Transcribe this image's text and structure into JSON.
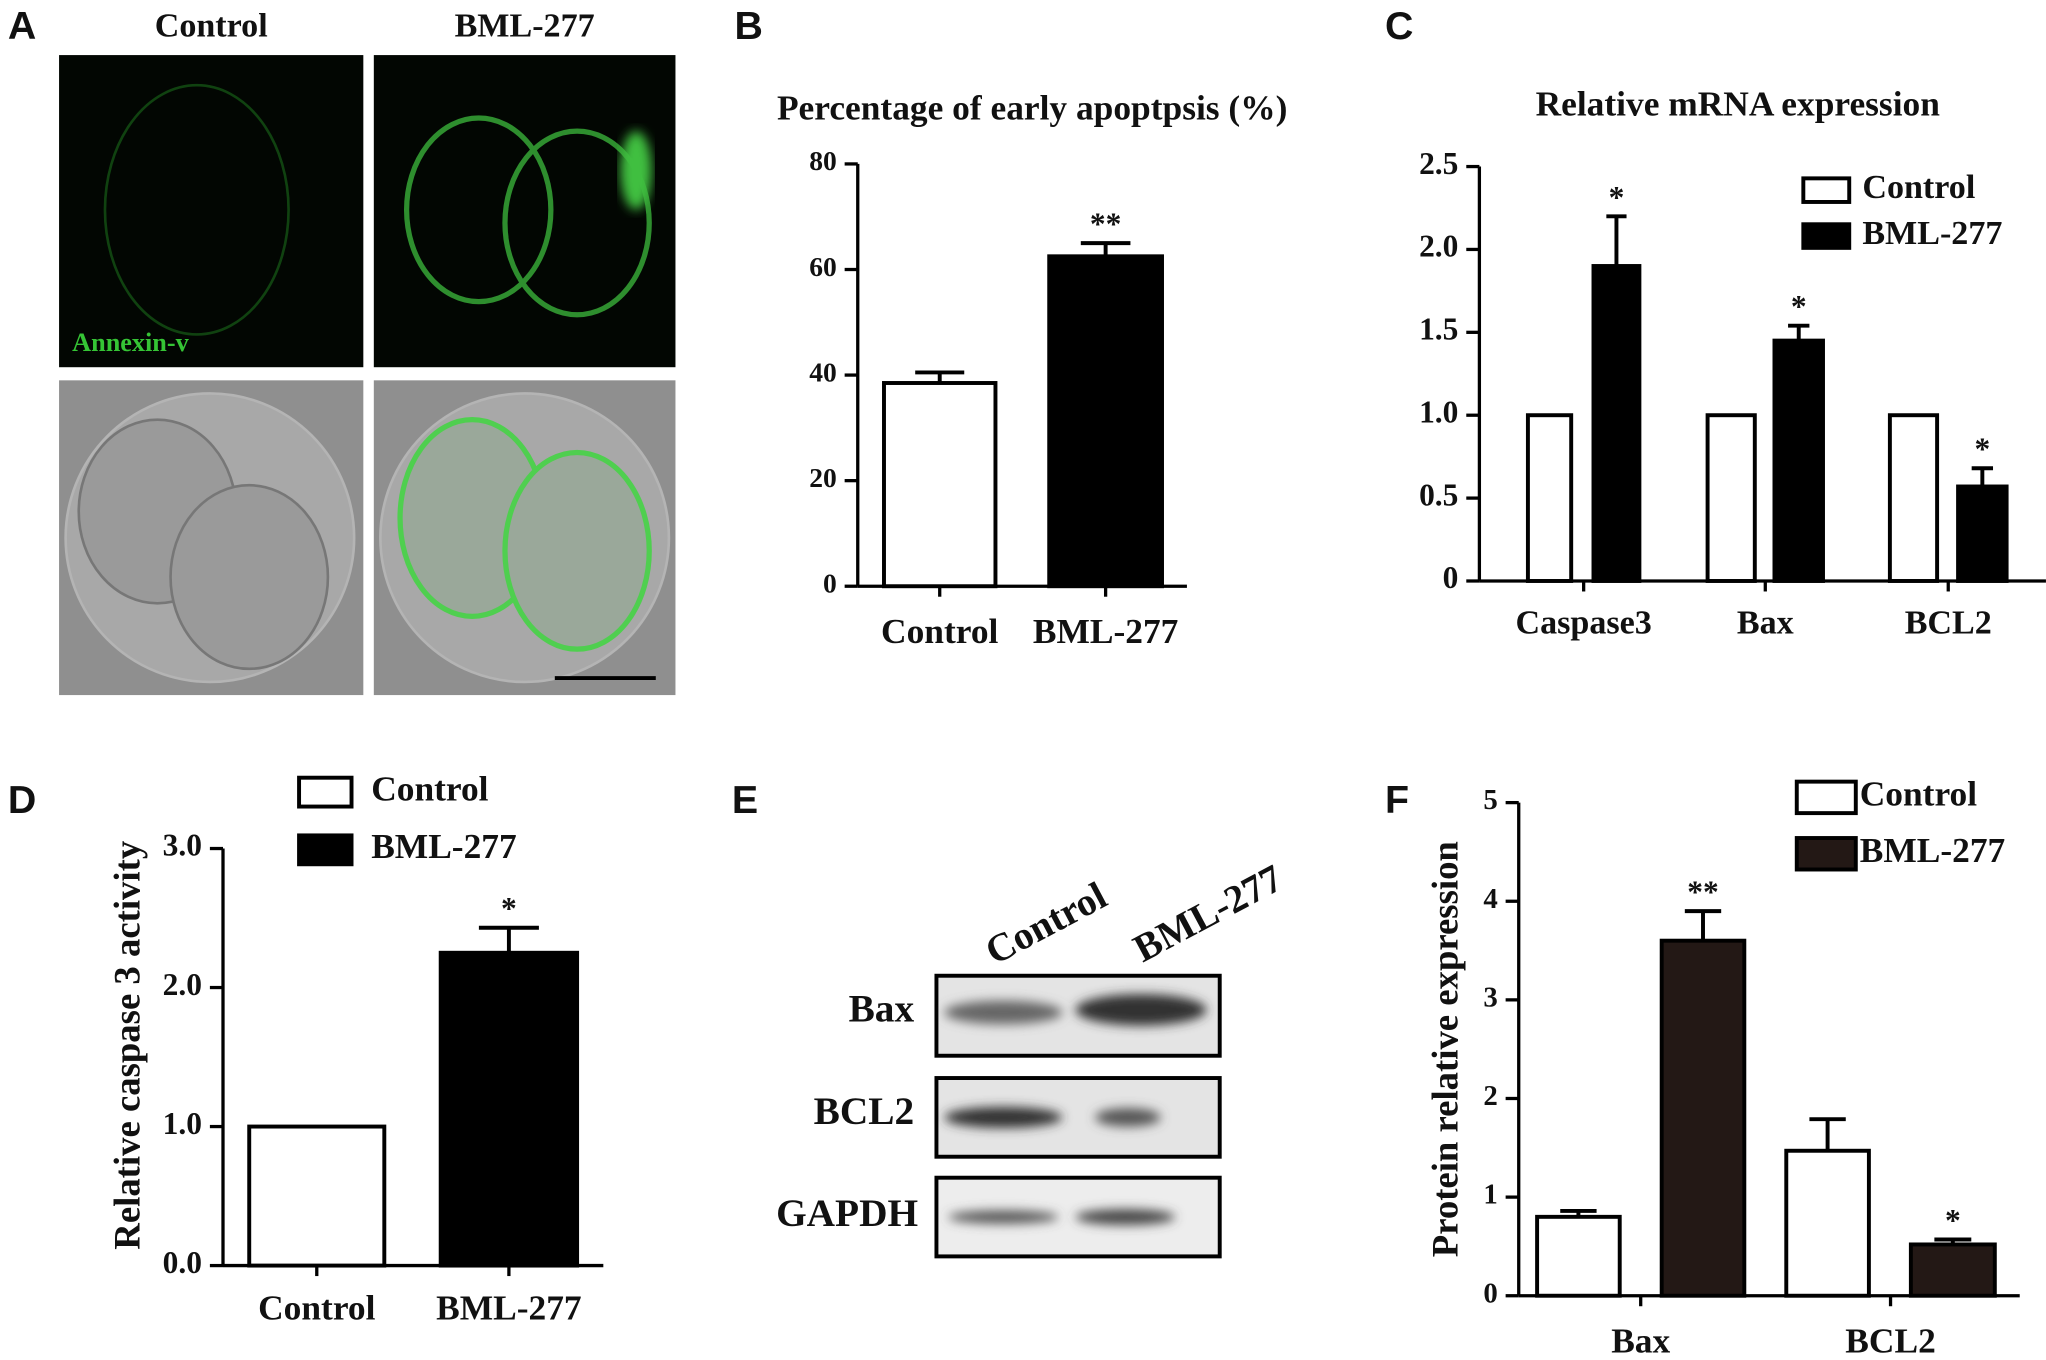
{
  "panel_labels": [
    "A",
    "B",
    "C",
    "D",
    "E",
    "F"
  ],
  "panel_a": {
    "columns": [
      "Control",
      "BML-277"
    ],
    "stain": "Annexin-v"
  },
  "panel_e": {
    "columns": [
      "Control",
      "BML-277"
    ],
    "rows": [
      "Bax",
      "BCL2",
      "GAPDH"
    ]
  },
  "chart_data": [
    {
      "type": "bar",
      "title": "Percentage of early apoptpsis (%)",
      "categories": [
        "Control",
        "BML-277"
      ],
      "values": [
        38.5,
        62.5
      ],
      "errors": [
        2,
        2.5
      ],
      "colors": [
        "#ffffff",
        "#000000"
      ],
      "value_annotations": [
        null,
        "**"
      ],
      "ylim": [
        0,
        80
      ],
      "yticks": [
        0,
        20,
        40,
        60,
        80
      ]
    },
    {
      "type": "grouped_bar",
      "title": "Relative mRNA expression",
      "categories": [
        "Caspase3",
        "Bax",
        "BCL2"
      ],
      "series": [
        {
          "name": "Control",
          "color": "#ffffff",
          "values": [
            1,
            1,
            1
          ]
        },
        {
          "name": "BML-277",
          "color": "#000000",
          "values": [
            1.9,
            1.45,
            0.57
          ],
          "errors": [
            0.3,
            0.09,
            0.11
          ],
          "annotations": [
            "*",
            "*",
            "*"
          ]
        }
      ],
      "ylim": [
        0,
        2.5
      ],
      "yticks": [
        0,
        0.5,
        {
          "value": 1,
          "label": "1.0"
        },
        1.5,
        {
          "value": 2,
          "label": "2.0"
        },
        2.5
      ]
    },
    {
      "type": "bar",
      "y_label": "Relative caspase 3 activity",
      "categories": [
        "Control",
        "BML-277"
      ],
      "values": [
        1,
        2.25
      ],
      "errors": [
        null,
        0.18
      ],
      "colors": [
        "#ffffff",
        "#000000"
      ],
      "value_annotations": [
        null,
        "*"
      ],
      "legend": [
        {
          "name": "Control",
          "color": "#ffffff"
        },
        {
          "name": "BML-277",
          "color": "#000000"
        }
      ],
      "ylim": [
        0,
        3
      ],
      "yticks": [
        {
          "value": 0,
          "label": "0.0"
        },
        {
          "value": 1,
          "label": "1.0"
        },
        {
          "value": 2,
          "label": "2.0"
        },
        {
          "value": 3,
          "label": "3.0"
        }
      ]
    },
    {
      "type": "grouped_bar",
      "y_label": "Protein relative expression",
      "categories": [
        "Bax",
        "BCL2"
      ],
      "series": [
        {
          "name": "Control",
          "color": "#ffffff",
          "values": [
            0.8,
            1.47
          ],
          "errors": [
            0.06,
            0.32
          ]
        },
        {
          "name": "BML-277",
          "color": "#231815",
          "values": [
            3.6,
            0.52
          ],
          "errors": [
            0.3,
            0.05
          ],
          "annotations": [
            "**",
            "*"
          ]
        }
      ],
      "ylim": [
        0,
        5
      ],
      "yticks": [
        0,
        1,
        2,
        3,
        4,
        5
      ]
    }
  ]
}
